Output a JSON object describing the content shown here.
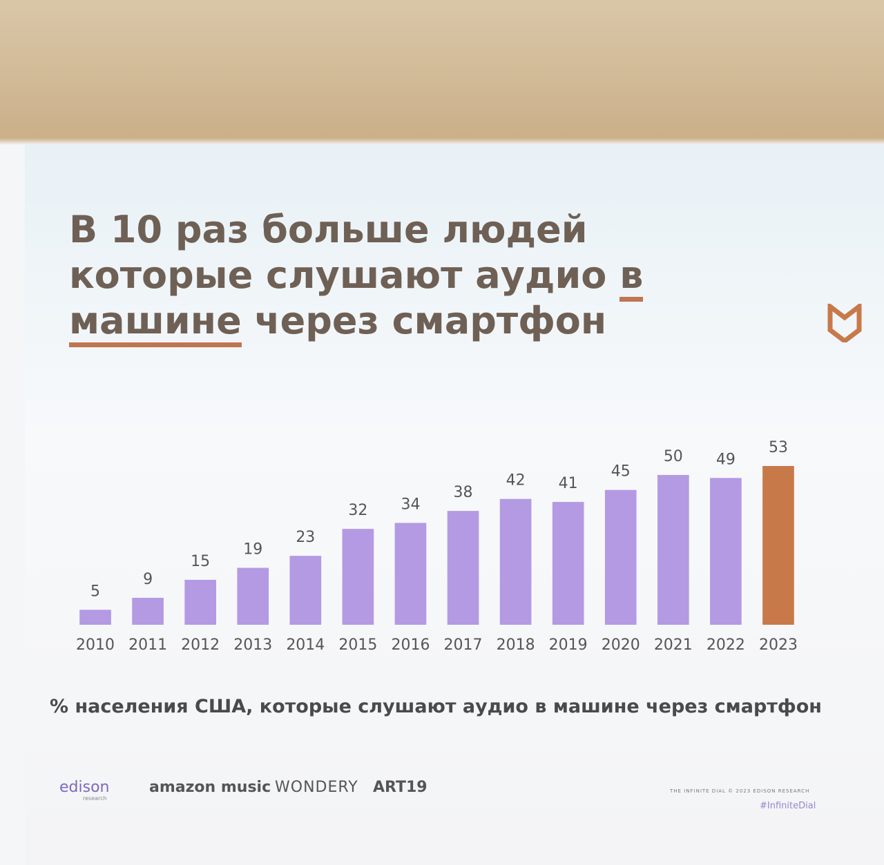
{
  "chart_data": {
    "type": "bar",
    "title": [
      "В 10 раз больше людей которые слушают аудио",
      "в машине",
      "через смартфон"
    ],
    "title_underline": 1,
    "x_label": "% населения США, которые слушают аудио в машине через смартфон",
    "categories": [
      "2010",
      "2011",
      "2012",
      "2013",
      "2014",
      "2015",
      "2016",
      "2017",
      "2018",
      "2019",
      "2020",
      "2021",
      "2022",
      "2023"
    ],
    "values": [
      5,
      9,
      15,
      19,
      23,
      32,
      34,
      38,
      42,
      41,
      45,
      50,
      49,
      53
    ],
    "colors": [
      "#b39ae3",
      "#b39ae3",
      "#b39ae3",
      "#b39ae3",
      "#b39ae3",
      "#b39ae3",
      "#b39ae3",
      "#b39ae3",
      "#b39ae3",
      "#b39ae3",
      "#b39ae3",
      "#b39ae3",
      "#b39ae3",
      "#c8794a"
    ],
    "grid": false
  },
  "slide": {
    "logos": [
      "edison",
      "research",
      "amazon music",
      "WONDERY",
      "ART19"
    ],
    "credit": "THE INFINITE DIAL © 2023 EDISON RESEARCH",
    "hashtag": "#InfiniteDial"
  }
}
